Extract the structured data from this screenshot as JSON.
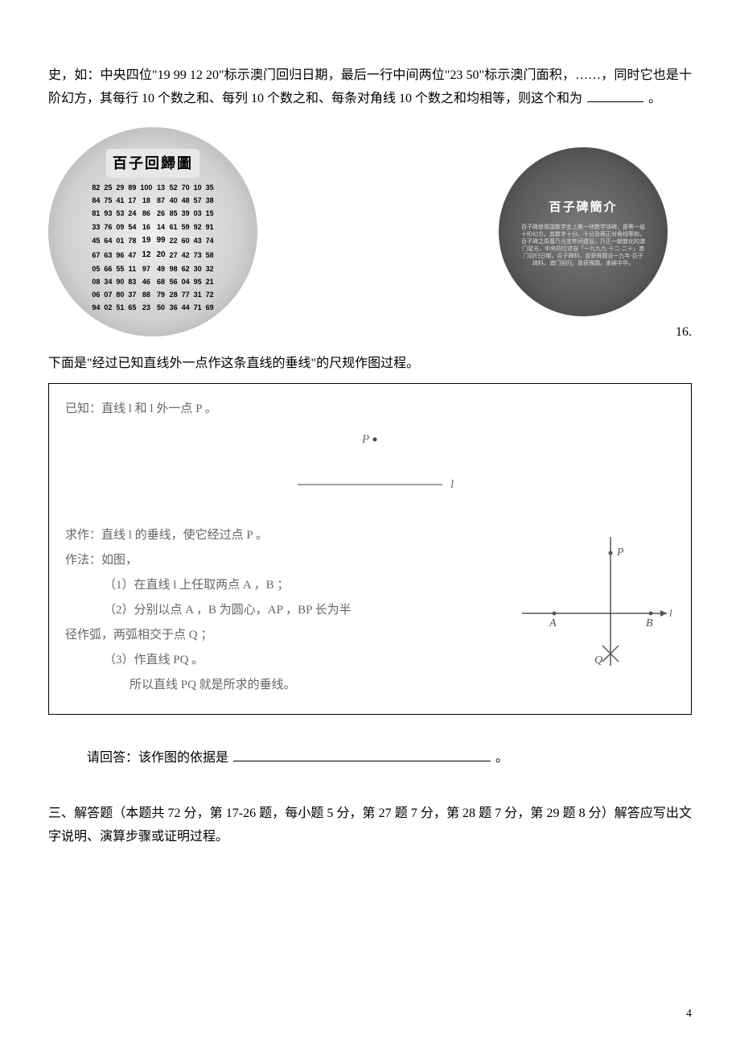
{
  "q15": {
    "para": "史，如：中央四位\"19 99 12 20\"标示澳门回归日期，最后一行中间两位\"23 50\"标示澳门面积，……，同时它也是十阶幻方，其每行 10 个数之和、每列 10 个数之和、每条对角线 10 个数之和均相等，则这个和为",
    "after": "。"
  },
  "left_circle": {
    "title": "百子回歸圖",
    "grid_rows": [
      [
        "82",
        "25",
        "29",
        "89",
        "100",
        "13",
        "52",
        "70",
        "10",
        "35"
      ],
      [
        "84",
        "75",
        "41",
        "17",
        "18",
        "87",
        "40",
        "48",
        "57",
        "38"
      ],
      [
        "81",
        "93",
        "53",
        "24",
        "86",
        "26",
        "85",
        "39",
        "03",
        "15"
      ],
      [
        "33",
        "76",
        "09",
        "54",
        "16",
        "14",
        "61",
        "59",
        "92",
        "91"
      ],
      [
        "45",
        "64",
        "01",
        "78",
        "19",
        "99",
        "22",
        "60",
        "43",
        "74"
      ],
      [
        "67",
        "63",
        "96",
        "47",
        "12",
        "20",
        "27",
        "42",
        "73",
        "58"
      ],
      [
        "05",
        "66",
        "55",
        "11",
        "97",
        "49",
        "98",
        "62",
        "30",
        "32"
      ],
      [
        "08",
        "34",
        "90",
        "83",
        "46",
        "68",
        "56",
        "04",
        "95",
        "21"
      ],
      [
        "06",
        "07",
        "80",
        "37",
        "88",
        "79",
        "28",
        "77",
        "31",
        "72"
      ],
      [
        "94",
        "02",
        "51",
        "65",
        "23",
        "50",
        "36",
        "44",
        "71",
        "69"
      ]
    ],
    "bold_positions": [
      [
        4,
        4
      ],
      [
        4,
        5
      ],
      [
        5,
        4
      ],
      [
        5,
        5
      ]
    ]
  },
  "right_circle": {
    "title": "百子碑簡介",
    "intro": "百子碑是我国数学史上第一块数学诗碑，是等一组十阶幻方，其数字十分、十分及两正对角线等和，百子碑之原基乃光宣年间建设，乃正一朝敦化的澳门星光，中央四位述自「一九九九·十二·二十」澳门回归日期，百子碑科，曾获殊圆设一九年·百子碑科，澳门回归。曾获殊圆，承续中华。"
  },
  "q16": {
    "label": "16.",
    "intro": "下面是\"经过已知直线外一点作这条直线的垂线\"的尺规作图过程。",
    "given": "已知：直线 l 和 l 外一点 P 。",
    "point_label": "P",
    "line_label": "l",
    "seek": "求作：直线 l 的垂线，使它经过点 P 。",
    "method_title": "作法：如图，",
    "step1": "（1）在直线 l 上任取两点 A ，B ；",
    "step2": "（2）分别以点 A ，B 为圆心，AP ，BP 长为半",
    "step2b": "径作弧，两弧相交于点 Q ；",
    "step3": "（3）作直线 PQ 。",
    "conclusion": "所以直线 PQ 就是所求的垂线。",
    "labels": {
      "P": "P",
      "A": "A",
      "B": "B",
      "Q": "Q",
      "l": "l"
    },
    "answer_prompt": "请回答：该作图的依据是",
    "answer_after": "。"
  },
  "section3": {
    "title": "三、解答题（本题共 72 分，第 17-26 题，每小题 5 分，第 27 题 7 分，第 28 题 7 分，第 29 题 8 分）解答应写出文字说明、演算步骤或证明过程。"
  },
  "page_number": "4",
  "colors": {
    "text": "#000000",
    "faded": "#666666",
    "circle_left_bg": "#d0d0d0",
    "circle_right_bg": "#5a5a5a"
  }
}
